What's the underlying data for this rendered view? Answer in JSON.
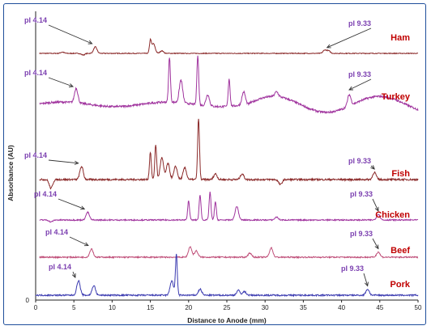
{
  "chart_data": {
    "type": "line",
    "xlabel": "Distance to Anode (mm)",
    "ylabel": "Absorbance (AU)",
    "xlim": [
      0,
      50
    ],
    "x_ticks": [
      0,
      5,
      10,
      15,
      20,
      25,
      30,
      35,
      40,
      45,
      50
    ],
    "y_tick_label": "0",
    "grid": false,
    "legend": "none (series names printed at right end of each trace)",
    "series": [
      {
        "name": "Ham",
        "color": "#8b2a2a",
        "label_color": "#c00000",
        "peaks": [
          {
            "x": 3.5,
            "h": 0.2
          },
          {
            "x": 6.2,
            "h": -0.25
          },
          {
            "x": 7.8,
            "h": 1.0
          },
          {
            "x": 15.0,
            "h": 1.9
          },
          {
            "x": 15.4,
            "h": 1.5
          },
          {
            "x": 16.5,
            "h": 0.4
          },
          {
            "x": 37.8,
            "h": 0.5
          },
          {
            "x": 38.3,
            "h": 0.4
          }
        ],
        "annotations": [
          {
            "text": "pI 4.14",
            "x": 7.8
          },
          {
            "text": "pI 9.33",
            "x": 38.1
          }
        ]
      },
      {
        "name": "Turkey",
        "color": "#a0349e",
        "label_color": "#c00000",
        "peaks": [
          {
            "x": 5.3,
            "h": 0.9
          },
          {
            "x": 17.5,
            "h": 2.8
          },
          {
            "x": 19.0,
            "h": 1.4
          },
          {
            "x": 21.2,
            "h": 3.1
          },
          {
            "x": 22.5,
            "h": 0.7
          },
          {
            "x": 25.3,
            "h": 1.7
          },
          {
            "x": 27.2,
            "h": 0.8
          },
          {
            "x": 31.5,
            "h": 0.3
          },
          {
            "x": 41.0,
            "h": 0.7
          }
        ],
        "annotations": [
          {
            "text": "pI 4.14",
            "x": 5.3
          },
          {
            "text": "pI 9.33",
            "x": 41.0
          }
        ]
      },
      {
        "name": "Fish",
        "color": "#8b2a2a",
        "label_color": "#c00000",
        "peaks": [
          {
            "x": 2.0,
            "h": -0.6
          },
          {
            "x": 6.0,
            "h": 0.9
          },
          {
            "x": 15.0,
            "h": 1.9
          },
          {
            "x": 15.7,
            "h": 2.4
          },
          {
            "x": 16.5,
            "h": 1.5
          },
          {
            "x": 17.3,
            "h": 1.1
          },
          {
            "x": 18.3,
            "h": 0.9
          },
          {
            "x": 19.5,
            "h": 0.8
          },
          {
            "x": 21.3,
            "h": 4.2
          },
          {
            "x": 23.5,
            "h": 0.4
          },
          {
            "x": 27.0,
            "h": 0.4
          },
          {
            "x": 32.0,
            "h": -0.35
          },
          {
            "x": 44.3,
            "h": 0.5
          }
        ],
        "annotations": [
          {
            "text": "pI 4.14",
            "x": 6.0
          },
          {
            "text": "pI 9.33",
            "x": 44.3
          }
        ]
      },
      {
        "name": "Chicken",
        "color": "#a0349e",
        "label_color": "#c00000",
        "peaks": [
          {
            "x": 2.0,
            "h": -0.2
          },
          {
            "x": 6.8,
            "h": 0.8
          },
          {
            "x": 20.0,
            "h": 2.0
          },
          {
            "x": 21.5,
            "h": 2.6
          },
          {
            "x": 22.8,
            "h": 2.9
          },
          {
            "x": 23.5,
            "h": 1.9
          },
          {
            "x": 26.3,
            "h": 1.4
          },
          {
            "x": 31.5,
            "h": 0.3
          },
          {
            "x": 44.8,
            "h": 0.6
          }
        ],
        "annotations": [
          {
            "text": "pI 4.14",
            "x": 6.8
          },
          {
            "text": "pI 9.33",
            "x": 44.8
          }
        ]
      },
      {
        "name": "Beef",
        "color": "#c0507a",
        "label_color": "#c00000",
        "peaks": [
          {
            "x": 7.3,
            "h": 0.8
          },
          {
            "x": 20.2,
            "h": 1.0
          },
          {
            "x": 21.0,
            "h": 0.6
          },
          {
            "x": 28.0,
            "h": 0.4
          },
          {
            "x": 30.8,
            "h": 0.9
          },
          {
            "x": 44.8,
            "h": 0.5
          }
        ],
        "annotations": [
          {
            "text": "pI 4.14",
            "x": 7.3
          },
          {
            "text": "pI 9.33",
            "x": 44.8
          }
        ]
      },
      {
        "name": "Pork",
        "color": "#3a3ab0",
        "label_color": "#c00000",
        "peaks": [
          {
            "x": 5.6,
            "h": 1.2
          },
          {
            "x": 7.6,
            "h": 0.8
          },
          {
            "x": 17.8,
            "h": 1.2
          },
          {
            "x": 18.4,
            "h": 3.4
          },
          {
            "x": 21.5,
            "h": 0.5
          },
          {
            "x": 26.5,
            "h": 0.4
          },
          {
            "x": 27.3,
            "h": 0.3
          },
          {
            "x": 43.4,
            "h": 0.5
          }
        ],
        "annotations": [
          {
            "text": "pI 4.14",
            "x": 5.6
          },
          {
            "text": "pI 9.33",
            "x": 43.4
          }
        ]
      }
    ]
  }
}
